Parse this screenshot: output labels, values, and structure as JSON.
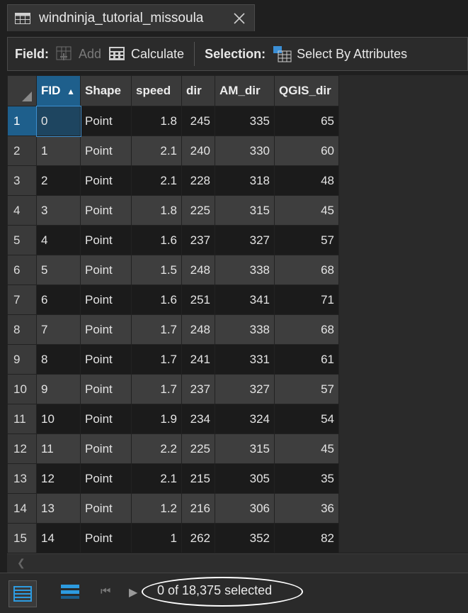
{
  "tab": {
    "title": "windninja_tutorial_missoula",
    "icon": "table-icon",
    "close_icon": "close-icon"
  },
  "toolbar": {
    "field_label": "Field:",
    "add_label": "Add",
    "calculate_label": "Calculate",
    "selection_label": "Selection:",
    "select_by_attributes_label": "Select By Attributes"
  },
  "grid": {
    "columns": [
      "FID",
      "Shape",
      "speed",
      "dir",
      "AM_dir",
      "QGIS_dir"
    ],
    "sort_indicator": "▲",
    "rows": [
      {
        "n": "1",
        "fid": "0",
        "shape": "Point",
        "speed": "1.8",
        "dir": "245",
        "am": "335",
        "qgis": "65"
      },
      {
        "n": "2",
        "fid": "1",
        "shape": "Point",
        "speed": "2.1",
        "dir": "240",
        "am": "330",
        "qgis": "60"
      },
      {
        "n": "3",
        "fid": "2",
        "shape": "Point",
        "speed": "2.1",
        "dir": "228",
        "am": "318",
        "qgis": "48"
      },
      {
        "n": "4",
        "fid": "3",
        "shape": "Point",
        "speed": "1.8",
        "dir": "225",
        "am": "315",
        "qgis": "45"
      },
      {
        "n": "5",
        "fid": "4",
        "shape": "Point",
        "speed": "1.6",
        "dir": "237",
        "am": "327",
        "qgis": "57"
      },
      {
        "n": "6",
        "fid": "5",
        "shape": "Point",
        "speed": "1.5",
        "dir": "248",
        "am": "338",
        "qgis": "68"
      },
      {
        "n": "7",
        "fid": "6",
        "shape": "Point",
        "speed": "1.6",
        "dir": "251",
        "am": "341",
        "qgis": "71"
      },
      {
        "n": "8",
        "fid": "7",
        "shape": "Point",
        "speed": "1.7",
        "dir": "248",
        "am": "338",
        "qgis": "68"
      },
      {
        "n": "9",
        "fid": "8",
        "shape": "Point",
        "speed": "1.7",
        "dir": "241",
        "am": "331",
        "qgis": "61"
      },
      {
        "n": "10",
        "fid": "9",
        "shape": "Point",
        "speed": "1.7",
        "dir": "237",
        "am": "327",
        "qgis": "57"
      },
      {
        "n": "11",
        "fid": "10",
        "shape": "Point",
        "speed": "1.9",
        "dir": "234",
        "am": "324",
        "qgis": "54"
      },
      {
        "n": "12",
        "fid": "11",
        "shape": "Point",
        "speed": "2.2",
        "dir": "225",
        "am": "315",
        "qgis": "45"
      },
      {
        "n": "13",
        "fid": "12",
        "shape": "Point",
        "speed": "2.1",
        "dir": "215",
        "am": "305",
        "qgis": "35"
      },
      {
        "n": "14",
        "fid": "13",
        "shape": "Point",
        "speed": "1.2",
        "dir": "216",
        "am": "306",
        "qgis": "36"
      },
      {
        "n": "15",
        "fid": "14",
        "shape": "Point",
        "speed": "1",
        "dir": "262",
        "am": "352",
        "qgis": "82"
      }
    ]
  },
  "status": {
    "selection_count": "0 of 18,375 selected",
    "accent_color": "#1e5f8c",
    "highlight_color": "#ffffff"
  }
}
